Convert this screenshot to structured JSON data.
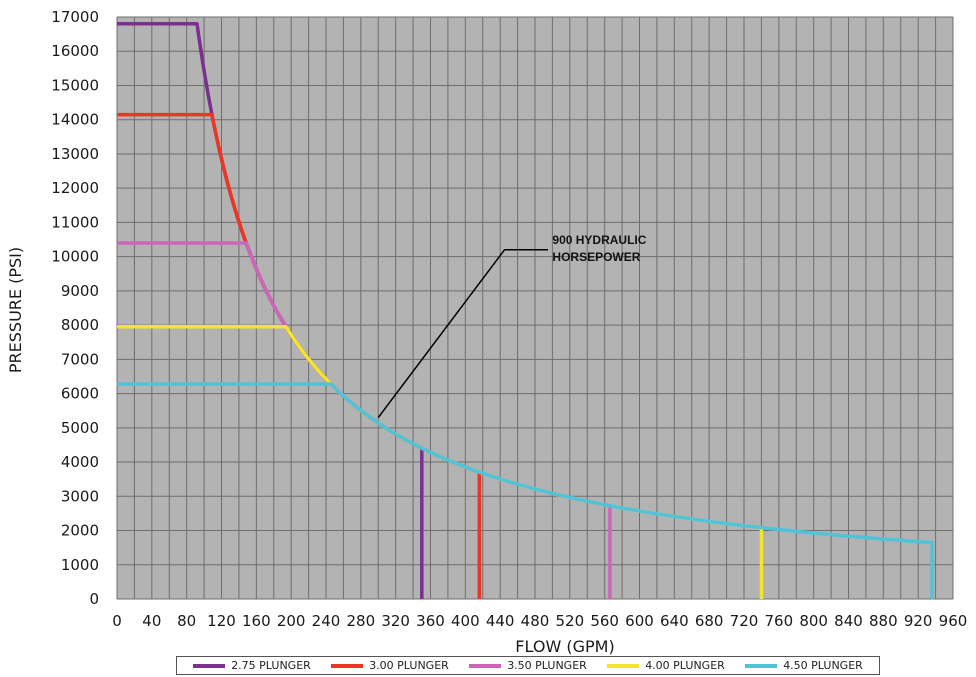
{
  "chart_data": {
    "type": "line",
    "title": "",
    "xlabel": "FLOW (GPM)",
    "ylabel": "PRESSURE (PSI)",
    "xlim": [
      0,
      960
    ],
    "ylim": [
      0,
      17000
    ],
    "x_ticks": [
      "0",
      "40",
      "80",
      "120",
      "160",
      "200",
      "240",
      "280",
      "320",
      "360",
      "400",
      "440",
      "480",
      "520",
      "560",
      "600",
      "640",
      "680",
      "720",
      "760",
      "800",
      "840",
      "880",
      "920",
      "960"
    ],
    "y_ticks": [
      "0",
      "1000",
      "2000",
      "3000",
      "4000",
      "5000",
      "6000",
      "7000",
      "8000",
      "9000",
      "10000",
      "11000",
      "12000",
      "13000",
      "14000",
      "15000",
      "16000",
      "17000"
    ],
    "x_tick_values": [
      0,
      40,
      80,
      120,
      160,
      200,
      240,
      280,
      320,
      360,
      400,
      440,
      480,
      520,
      560,
      600,
      640,
      680,
      720,
      760,
      800,
      840,
      880,
      920,
      960
    ],
    "y_tick_values": [
      0,
      1000,
      2000,
      3000,
      4000,
      5000,
      6000,
      7000,
      8000,
      9000,
      10000,
      11000,
      12000,
      13000,
      14000,
      15000,
      16000,
      17000
    ],
    "grid": true,
    "background": "#b3b3b3",
    "hp_constant": 900,
    "annotation": {
      "lines": [
        "900 HYDRAULIC",
        "HORSEPOWER"
      ],
      "text_x": 500,
      "text_y": 10200,
      "elbow_x": 445,
      "elbow_y": 10200,
      "pointer_x": 300,
      "pointer_y": 5300
    },
    "series": [
      {
        "name": "2.75 PLUNGER",
        "color": "#7b2f8e",
        "max_pressure": 16800,
        "max_flow": 350
      },
      {
        "name": "3.00 PLUNGER",
        "color": "#ee3424",
        "max_pressure": 14150,
        "max_flow": 416
      },
      {
        "name": "3.50 PLUNGER",
        "color": "#cc66bb",
        "max_pressure": 10400,
        "max_flow": 566
      },
      {
        "name": "4.00 PLUNGER",
        "color": "#f5e52a",
        "max_pressure": 7950,
        "max_flow": 740
      },
      {
        "name": "4.50 PLUNGER",
        "color": "#4fc4d9",
        "max_pressure": 6280,
        "max_flow": 936
      }
    ]
  }
}
